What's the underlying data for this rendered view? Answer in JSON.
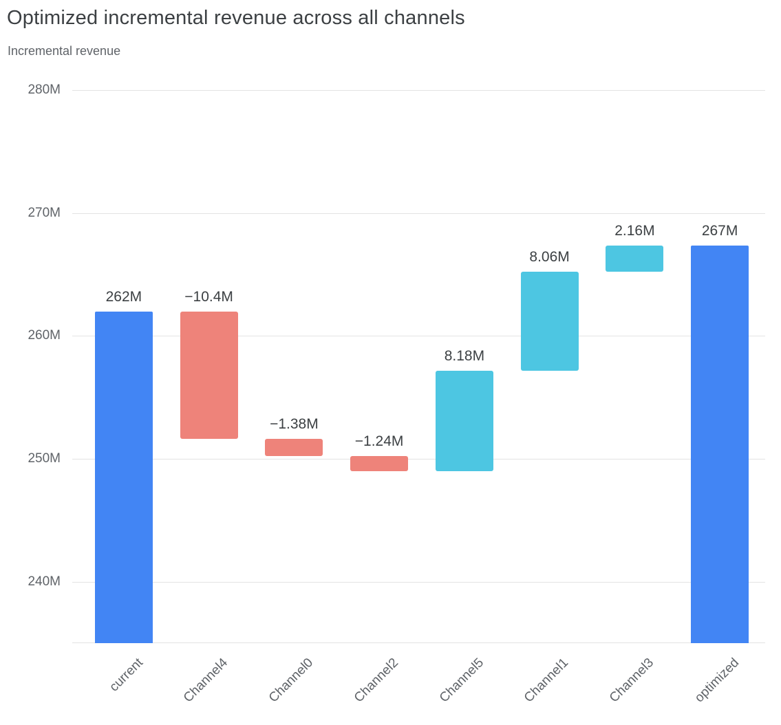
{
  "header": {
    "title": "Optimized incremental revenue across all channels",
    "subtitle": "Incremental revenue"
  },
  "chart_data": {
    "type": "bar",
    "subtype": "waterfall",
    "title": "Optimized incremental revenue across all channels",
    "ylabel": "Incremental revenue",
    "grid": true,
    "legend_position": "none",
    "categories": [
      "current",
      "Channel4",
      "Channel0",
      "Channel2",
      "Channel5",
      "Channel1",
      "Channel3",
      "optimized"
    ],
    "axis": {
      "min": 235,
      "max": 280.9,
      "ticks": [
        {
          "value": 240,
          "label": "240M"
        },
        {
          "value": 250,
          "label": "250M"
        },
        {
          "value": 260,
          "label": "260M"
        },
        {
          "value": 270,
          "label": "270M"
        },
        {
          "value": 280,
          "label": "280M"
        }
      ]
    },
    "bars": [
      {
        "category": "current",
        "kind": "total",
        "start": 235,
        "end": 262,
        "value": 262,
        "display": "262M"
      },
      {
        "category": "Channel4",
        "kind": "decrease",
        "start": 262,
        "end": 251.6,
        "value": -10.4,
        "display": "−10.4M"
      },
      {
        "category": "Channel0",
        "kind": "decrease",
        "start": 251.6,
        "end": 250.22,
        "value": -1.38,
        "display": "−1.38M"
      },
      {
        "category": "Channel2",
        "kind": "decrease",
        "start": 250.22,
        "end": 248.98,
        "value": -1.24,
        "display": "−1.24M"
      },
      {
        "category": "Channel5",
        "kind": "increase",
        "start": 248.98,
        "end": 257.16,
        "value": 8.18,
        "display": "8.18M"
      },
      {
        "category": "Channel1",
        "kind": "increase",
        "start": 257.16,
        "end": 265.22,
        "value": 8.06,
        "display": "8.06M"
      },
      {
        "category": "Channel3",
        "kind": "increase",
        "start": 265.22,
        "end": 267.38,
        "value": 2.16,
        "display": "2.16M"
      },
      {
        "category": "optimized",
        "kind": "total",
        "start": 235,
        "end": 267.38,
        "value": 267,
        "display": "267M"
      }
    ],
    "colors": {
      "total": "#4285F4",
      "decrease": "#EE837A",
      "increase": "#4DC6E2",
      "gridline": "#E3E3E3",
      "axis_text": "#5F6368",
      "value_text": "#3C4043"
    }
  }
}
